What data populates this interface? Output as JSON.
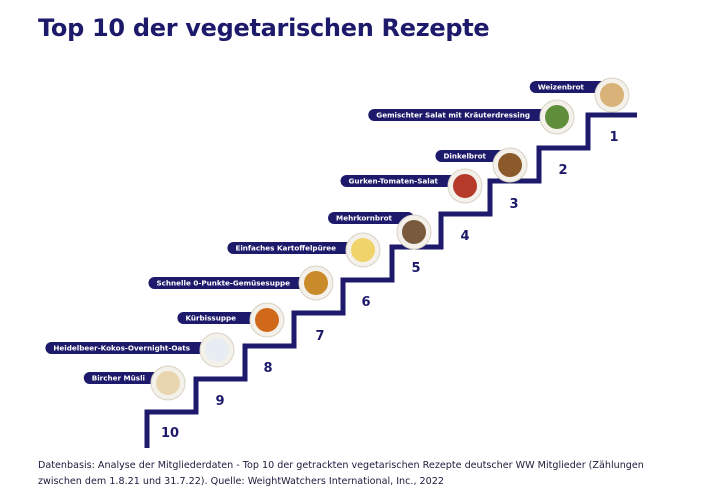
{
  "title": "Top 10 der vegetarischen Rezepte",
  "items": [
    {
      "rank": 1,
      "label": "Weizenbrot"
    },
    {
      "rank": 2,
      "label": "Gemischter Salat mit Kräuterdressing"
    },
    {
      "rank": 3,
      "label": "Dinkelbrot"
    },
    {
      "rank": 4,
      "label": "Gurken-Tomaten-Salat"
    },
    {
      "rank": 5,
      "label": "Mehrkornbrot"
    },
    {
      "rank": 6,
      "label": "Einfaches Kartoffelpüree"
    },
    {
      "rank": 7,
      "label": "Schnelle 0-Punkte-Gemüsesuppe"
    },
    {
      "rank": 8,
      "label": "Kürbissuppe"
    },
    {
      "rank": 9,
      "label": "Heidelbeer-Kokos-Overnight-Oats"
    },
    {
      "rank": 10,
      "label": "Bircher Müsli"
    }
  ],
  "footnote": "Datenbasis: Analyse der Mitgliederdaten - Top 10 der getrackten vegetarischen Rezepte deutscher WW Mitglieder (Zählungen zwischen dem 1.8.21 und 31.7.22). Quelle: WeightWatchers International, Inc., 2022"
}
